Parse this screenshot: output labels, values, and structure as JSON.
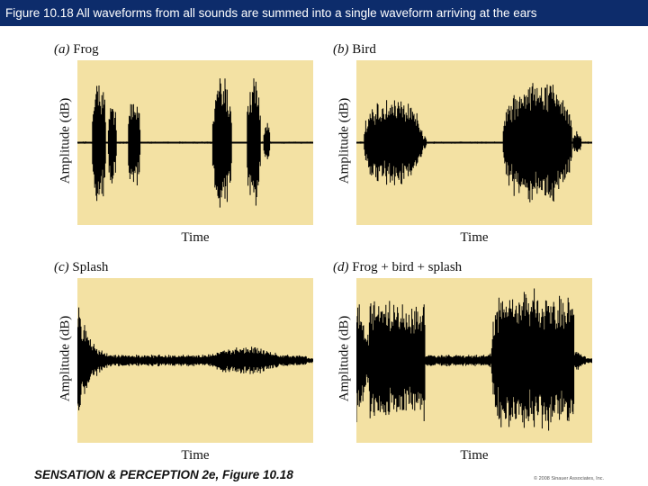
{
  "slide": {
    "title": "Figure 10.18 All waveforms from all sounds are summed into a single waveform arriving at the ears"
  },
  "panels": [
    {
      "letter": "(a)",
      "name": "Frog",
      "xlabel": "Time",
      "ylabel": "Amplitude (dB)",
      "waveform": "frog"
    },
    {
      "letter": "(b)",
      "name": "Bird",
      "xlabel": "Time",
      "ylabel": "Amplitude (dB)",
      "waveform": "bird"
    },
    {
      "letter": "(c)",
      "name": "Splash",
      "xlabel": "Time",
      "ylabel": "Amplitude (dB)",
      "waveform": "splash"
    },
    {
      "letter": "(d)",
      "name": "Frog + bird + splash",
      "xlabel": "Time",
      "ylabel": "Amplitude (dB)",
      "waveform": "combined"
    }
  ],
  "footer": {
    "source": "SENSATION & PERCEPTION 2e, Figure 10.18",
    "copyright": "© 2008 Sinauer Associates, Inc."
  },
  "colors": {
    "title_bar": "#0d2c6b",
    "plot_background": "#f3e1a3",
    "waveform": "#000000"
  }
}
